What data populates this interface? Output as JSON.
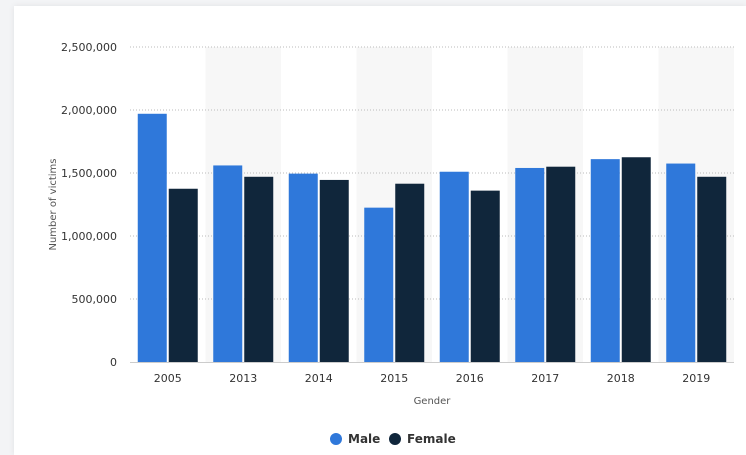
{
  "chart_data": {
    "type": "bar",
    "xlabel": "Gender",
    "ylabel": "Number of victims",
    "ylim": [
      0,
      2500000
    ],
    "yticks": [
      0,
      500000,
      1000000,
      1500000,
      2000000,
      2500000
    ],
    "ytick_labels": [
      "0",
      "500,000",
      "1,000,000",
      "1,500,000",
      "2,000,000",
      "2,500,000"
    ],
    "categories": [
      "2005",
      "2013",
      "2014",
      "2015",
      "2016",
      "2017",
      "2018",
      "2019"
    ],
    "series": [
      {
        "name": "Male",
        "color": "#2f78da",
        "values": [
          1970000,
          1560000,
          1495000,
          1225000,
          1510000,
          1540000,
          1610000,
          1575000
        ]
      },
      {
        "name": "Female",
        "color": "#10263b",
        "values": [
          1375000,
          1470000,
          1445000,
          1415000,
          1360000,
          1550000,
          1625000,
          1470000
        ]
      }
    ],
    "grid": true,
    "legend_position": "bottom-center"
  }
}
